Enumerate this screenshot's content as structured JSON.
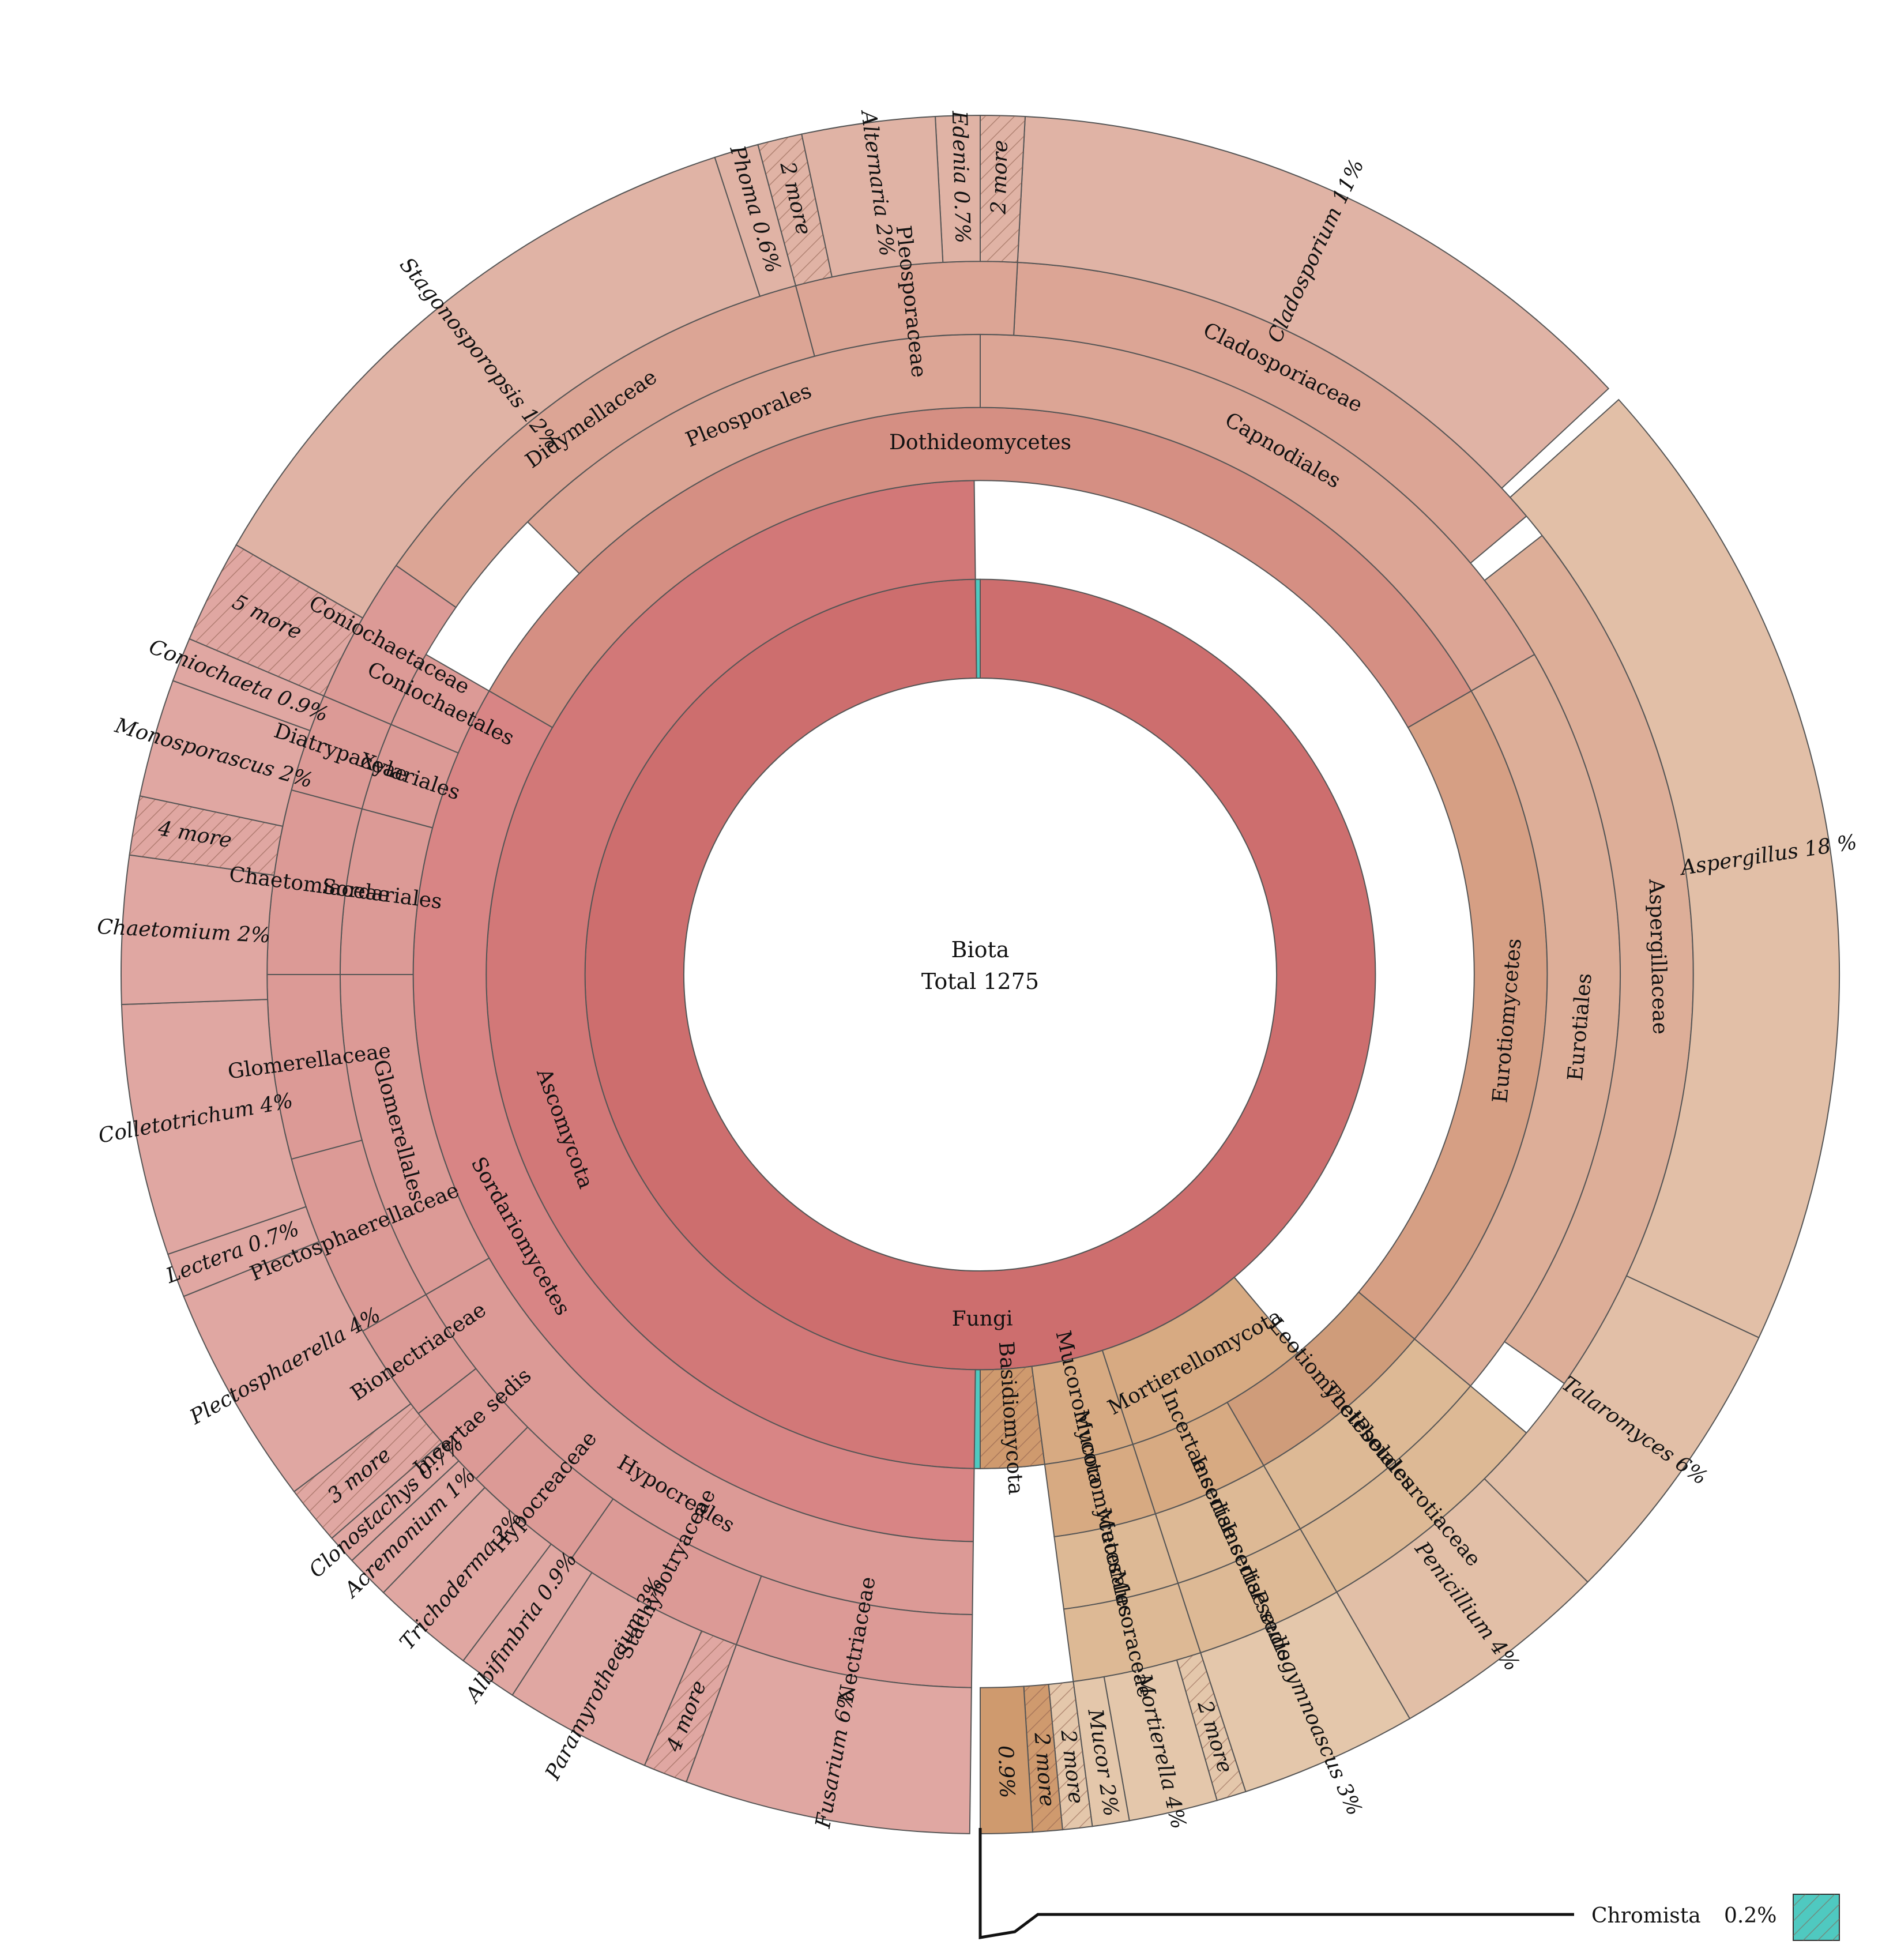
{
  "chart_data": {
    "type": "sunburst",
    "center": {
      "line1": "Biota",
      "line2": "Total 1275"
    },
    "colors": {
      "fungi": "#cd6e6e",
      "ascomycota": "#d27878",
      "sordariomycetes": "#d88585",
      "sordario_outer": "#dc9a96",
      "sordario_genus": "#e0a7a2",
      "dothideomycetes": "#d58f83",
      "dothideo_outer": "#dca595",
      "dothideo_genus": "#e0b3a5",
      "eurotiomycetes": "#d69f84",
      "eurotio_outer": "#ddae98",
      "eurotio_genus": "#e2bfa7",
      "mucoro": "#d7aa82",
      "mucoro_outer": "#ddb995",
      "mucoro_genus": "#e4c7ab",
      "basidio": "#cf9a6e",
      "leotio": "#cf9c7a",
      "chromista": "#4fc9c0",
      "line": "#555555"
    },
    "rings": [
      {
        "level": "kingdom",
        "r0": 0.345,
        "r1": 0.46,
        "segments": [
          {
            "label": "Fungi",
            "start": 0,
            "end": 359.3,
            "color": "fungi"
          },
          {
            "label": "",
            "start": 359.3,
            "end": 360,
            "color": "chromista"
          }
        ]
      },
      {
        "level": "phylum",
        "r0": 0.46,
        "r1": 0.575,
        "segments": [
          {
            "label": "Ascomycota",
            "start": 140,
            "end": 359.3,
            "color": "ascomycota"
          },
          {
            "label": "Mortierellomycota",
            "start": 140,
            "end": 162,
            "color": "mucoro"
          },
          {
            "label": "Mucoromycota",
            "start": 162,
            "end": 172.5,
            "color": "mucoro"
          },
          {
            "label": "Basidiomycota",
            "start": 172.5,
            "end": 180,
            "color": "basidio",
            "hatched": true
          },
          {
            "label": "",
            "start": 180,
            "end": 180.7,
            "color": "chromista"
          }
        ]
      },
      {
        "level": "class",
        "r0": 0.575,
        "r1": 0.66,
        "segments": [
          {
            "label": "Dothideomycetes",
            "start": 300,
            "end": 60,
            "color": "dothideomycetes"
          },
          {
            "label": "Eurotiomycetes",
            "start": 60,
            "end": 130,
            "color": "eurotiomycetes"
          },
          {
            "label": "Leotiomycetes",
            "start": 130,
            "end": 150,
            "color": "leotio"
          },
          {
            "label": "Incertae sedis",
            "start": 150,
            "end": 162,
            "color": "mucoro"
          },
          {
            "label": "Mucoromycetes",
            "start": 162,
            "end": 172.5,
            "color": "mucoro"
          },
          {
            "label": "Sordariomycetes",
            "start": 180.7,
            "end": 300,
            "color": "sordariomycetes"
          }
        ]
      },
      {
        "level": "order",
        "r0": 0.66,
        "r1": 0.745,
        "segments": [
          {
            "label": "Capnodiales",
            "start": 0,
            "end": 60,
            "color": "dothideo_outer"
          },
          {
            "label": "Pleosporales",
            "start": 315,
            "end": 360,
            "color": "dothideo_outer"
          },
          {
            "label": "Eurotiales",
            "start": 60,
            "end": 130,
            "color": "eurotio_outer"
          },
          {
            "label": "Thelebolales",
            "start": 130,
            "end": 150,
            "color": "mucoro_outer"
          },
          {
            "label": "Incertae sedis",
            "start": 150,
            "end": 162,
            "color": "mucoro_outer"
          },
          {
            "label": "Mucorales",
            "start": 162,
            "end": 172.5,
            "color": "mucoro_outer"
          },
          {
            "label": "Hypocreales",
            "start": 180.7,
            "end": 240,
            "color": "sordario_outer"
          },
          {
            "label": "Glomerellales",
            "start": 240,
            "end": 270,
            "color": "sordario_outer"
          },
          {
            "label": "Sordariales",
            "start": 270,
            "end": 285,
            "color": "sordario_outer"
          },
          {
            "label": "Xylariales",
            "start": 285,
            "end": 293,
            "color": "sordario_outer"
          },
          {
            "label": "Coniochaetales",
            "start": 293,
            "end": 300,
            "color": "sordario_outer"
          }
        ]
      },
      {
        "level": "family",
        "r0": 0.745,
        "r1": 0.83,
        "segments": [
          {
            "label": "Cladosporiaceae",
            "start": 3,
            "end": 50,
            "color": "dothideo_outer"
          },
          {
            "label": "Pleosporaceae",
            "start": 345,
            "end": 3,
            "color": "dothideo_outer"
          },
          {
            "label": "Didymellaceae",
            "start": 305,
            "end": 345,
            "color": "dothideo_outer"
          },
          {
            "label": "Aspergillaceae",
            "start": 52,
            "end": 125,
            "color": "eurotio_outer"
          },
          {
            "label": "Pseudeurotiaceae",
            "start": 130,
            "end": 150,
            "color": "mucoro_outer"
          },
          {
            "label": "Incertae sedis",
            "start": 150,
            "end": 162,
            "color": "mucoro_outer"
          },
          {
            "label": "Mucoraceae",
            "start": 162,
            "end": 172.5,
            "color": "mucoro_outer"
          },
          {
            "label": "Nectriaceae",
            "start": 180.7,
            "end": 200,
            "color": "sordario_outer"
          },
          {
            "label": "Stachybotryaceae",
            "start": 200,
            "end": 215,
            "color": "sordario_outer"
          },
          {
            "label": "Hypocreaceae",
            "start": 215,
            "end": 225,
            "color": "sordario_outer"
          },
          {
            "label": "Incertae sedis",
            "start": 225,
            "end": 232,
            "color": "sordario_outer"
          },
          {
            "label": "Bionectriaceae",
            "start": 232,
            "end": 240,
            "color": "sordario_outer"
          },
          {
            "label": "Plectosphaerellaceae",
            "start": 240,
            "end": 255,
            "color": "sordario_outer"
          },
          {
            "label": "Glomerellaceae",
            "start": 255,
            "end": 270,
            "color": "sordario_outer"
          },
          {
            "label": "Chaetomiaceae",
            "start": 270,
            "end": 285,
            "color": "sordario_outer"
          },
          {
            "label": "Diatrypaceae",
            "start": 285,
            "end": 293,
            "color": "sordario_outer"
          },
          {
            "label": "Coniochaetaceae",
            "start": 293,
            "end": 305,
            "color": "sordario_outer"
          }
        ]
      },
      {
        "level": "genus",
        "r0": 0.83,
        "r1": 1.0,
        "segments": [
          {
            "label": "Cladosporium 11%",
            "start": 3,
            "end": 47,
            "color": "dothideo_genus"
          },
          {
            "label": "2 more",
            "start": 0,
            "end": 3,
            "color": "dothideo_genus",
            "hatched": true
          },
          {
            "label": "Edenia 0.7%",
            "start": 357,
            "end": 360,
            "color": "dothideo_genus"
          },
          {
            "label": "Alternaria 2%",
            "start": 348,
            "end": 357,
            "color": "dothideo_genus"
          },
          {
            "label": "2 more",
            "start": 345,
            "end": 348,
            "color": "dothideo_genus",
            "hatched": true
          },
          {
            "label": "Phoma 0.6%",
            "start": 342,
            "end": 345,
            "color": "dothideo_genus"
          },
          {
            "label": "Stagonosporopsis 12%",
            "start": 300,
            "end": 342,
            "color": "dothideo_genus"
          },
          {
            "label": "Aspergillus 18 %",
            "start": 48,
            "end": 115,
            "color": "eurotio_genus"
          },
          {
            "label": "Talaromyces 6%",
            "start": 115,
            "end": 135,
            "color": "eurotio_genus"
          },
          {
            "label": "Penicillium 4%",
            "start": 135,
            "end": 150,
            "color": "eurotio_genus"
          },
          {
            "label": "Pseudogymnoascus 3%",
            "start": 150,
            "end": 162,
            "color": "mucoro_genus"
          },
          {
            "label": "2 more",
            "start": 162,
            "end": 164,
            "color": "mucoro_genus",
            "hatched": true
          },
          {
            "label": "Mortierella 4%",
            "start": 164,
            "end": 170,
            "color": "mucoro_genus"
          },
          {
            "label": "Mucor 2%",
            "start": 170,
            "end": 172.5,
            "color": "mucoro_genus"
          },
          {
            "label": "2 more",
            "start": 172.5,
            "end": 174.5,
            "color": "mucoro_genus",
            "hatched": true
          },
          {
            "label": "2 more",
            "start": 174.5,
            "end": 176.5,
            "color": "basidio",
            "hatched": true
          },
          {
            "label": "0.9%",
            "start": 176.5,
            "end": 180,
            "color": "basidio"
          },
          {
            "label": "Fusarium 6%",
            "start": 180.7,
            "end": 200,
            "color": "sordario_genus"
          },
          {
            "label": "4 more",
            "start": 200,
            "end": 203,
            "color": "sordario_genus",
            "hatched": true
          },
          {
            "label": "Paramyrothecium 3%",
            "start": 203,
            "end": 213,
            "color": "sordario_genus"
          },
          {
            "label": "Albifimbria 0.9%",
            "start": 213,
            "end": 217,
            "color": "sordario_genus"
          },
          {
            "label": "Trichoderma 2%",
            "start": 217,
            "end": 224,
            "color": "sordario_genus"
          },
          {
            "label": "Acremonium 1%",
            "start": 224,
            "end": 227,
            "color": "sordario_genus"
          },
          {
            "label": "Clonostachys 0.7%",
            "start": 227,
            "end": 229,
            "color": "sordario_genus"
          },
          {
            "label": "3 more",
            "start": 229,
            "end": 233,
            "color": "sordario_genus",
            "hatched": true
          },
          {
            "label": "Plectosphaerella 4%",
            "start": 233,
            "end": 248,
            "color": "sordario_genus"
          },
          {
            "label": "Lectera 0.7%",
            "start": 248,
            "end": 251,
            "color": "sordario_genus"
          },
          {
            "label": "Colletotrichum 4%",
            "start": 251,
            "end": 268,
            "color": "sordario_genus"
          },
          {
            "label": "Chaetomium 2%",
            "start": 268,
            "end": 278,
            "color": "sordario_genus"
          },
          {
            "label": "4 more",
            "start": 278,
            "end": 282,
            "color": "sordario_genus",
            "hatched": true
          },
          {
            "label": "Monosporascus 2%",
            "start": 282,
            "end": 290,
            "color": "sordario_genus"
          },
          {
            "label": "Coniochaeta 0.9%",
            "start": 290,
            "end": 293,
            "color": "sordario_genus"
          },
          {
            "label": "5 more",
            "start": 293,
            "end": 300,
            "color": "sordario_genus",
            "hatched": true
          }
        ]
      }
    ],
    "legend": {
      "label": "Chromista",
      "value": "0.2%"
    }
  }
}
